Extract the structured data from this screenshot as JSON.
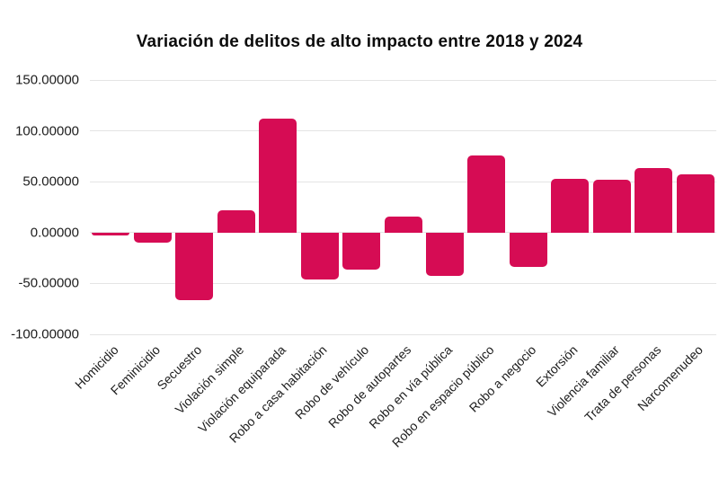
{
  "chart_data": {
    "type": "bar",
    "title": "Variación de delitos de alto impacto entre 2018 y 2024",
    "categories": [
      "Homicidio",
      "Feminicidio",
      "Secuestro",
      "Violación simple",
      "Violación equiparada",
      "Robo a casa habitación",
      "Robo de vehículo",
      "Robo de autopartes",
      "Robo en vía pública",
      "Robo en espacio público",
      "Robo a negocio",
      "Extorsión",
      "Violencia familiar",
      "Trata de personas",
      "Narcomenudeo"
    ],
    "values": [
      -3,
      -10,
      -66,
      22,
      112,
      -46,
      -36,
      16,
      -43,
      76,
      -34,
      53,
      52,
      63,
      57
    ],
    "y_ticks": [
      150,
      100,
      50,
      0,
      -50,
      -100
    ],
    "y_tick_labels": [
      "150.00000",
      "100.00000",
      "50.00000",
      "0.00000",
      "-50.00000",
      "-100.00000"
    ],
    "ylim": [
      -100,
      150
    ],
    "xlabel": "",
    "ylabel": "",
    "grid": "horizontal",
    "legend_position": "none",
    "x_label_rotation_deg": -45,
    "bar_color": "#d60c54"
  },
  "colors": {
    "bar": "#d60c54",
    "gridline": "#e4e4e4",
    "title_text": "#0c0c0c",
    "axis_text": "#1d1d1d",
    "background": "#ffffff"
  }
}
